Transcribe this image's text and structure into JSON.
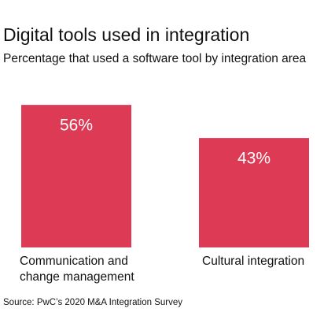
{
  "chart_data": {
    "type": "bar",
    "title": "Digital tools used in integration",
    "subtitle": "Percentage that used a software tool by integration area",
    "categories": [
      "Communication and change management",
      "Cultural integration"
    ],
    "values": [
      56,
      43
    ],
    "value_labels": [
      "56%",
      "43%"
    ],
    "color": "#dd3a55",
    "source": "Source: PwC’s 2020 M&A Integration Survey"
  }
}
